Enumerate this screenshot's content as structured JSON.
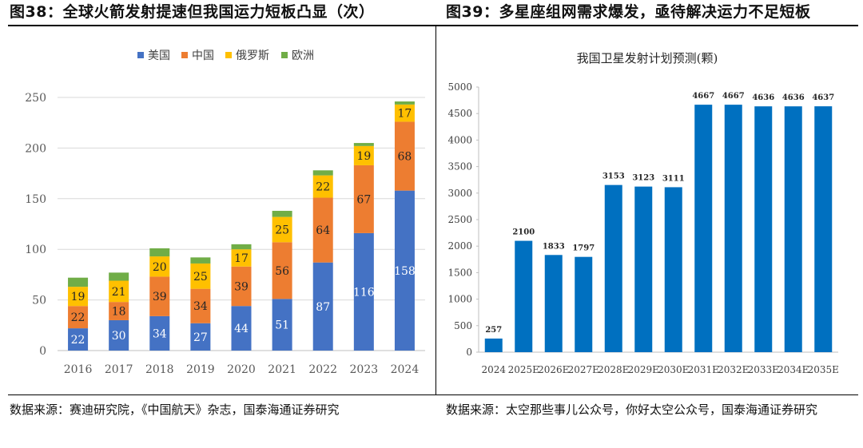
{
  "left": {
    "header": "图38：全球火箭发射提速但我国运力短板凸显（次）",
    "source": "数据来源：赛迪研究院，《中国航天》杂志，国泰海通证券研究"
  },
  "right": {
    "header": "图39：多星座组网需求爆发，亟待解决运力不足短板",
    "source": "数据来源：太空那些事儿公众号，你好太空公众号，国泰海通证券研究"
  },
  "colors": {
    "usa": "#4472c4",
    "china": "#ed7d31",
    "russia": "#ffc000",
    "europe": "#70ad47",
    "bar_blue": "#0070c0"
  },
  "chart_data": [
    {
      "type": "bar",
      "stacked": true,
      "title": "",
      "categories": [
        "2016",
        "2017",
        "2018",
        "2019",
        "2020",
        "2021",
        "2022",
        "2023",
        "2024"
      ],
      "series": [
        {
          "name": "美国",
          "values": [
            22,
            30,
            34,
            27,
            44,
            51,
            87,
            116,
            158
          ]
        },
        {
          "name": "中国",
          "values": [
            22,
            18,
            39,
            34,
            39,
            56,
            64,
            67,
            68
          ]
        },
        {
          "name": "俄罗斯",
          "values": [
            19,
            21,
            20,
            25,
            17,
            25,
            22,
            19,
            17
          ]
        },
        {
          "name": "欧洲",
          "values": [
            9,
            8,
            8,
            6,
            5,
            6,
            5,
            3,
            3
          ]
        }
      ],
      "ylim": [
        0,
        250
      ],
      "yticks": [
        0,
        50,
        100,
        150,
        200,
        250
      ],
      "legend": "top",
      "grid": true,
      "xlabel": "",
      "ylabel": ""
    },
    {
      "type": "bar",
      "title": "我国卫星发射计划预测(颗)",
      "categories": [
        "2024",
        "2025E",
        "2026E",
        "2027E",
        "2028E",
        "2029E",
        "2030E",
        "2031E",
        "2032E",
        "2033E",
        "2034E",
        "2035E"
      ],
      "values": [
        257,
        2100,
        1833,
        1797,
        3153,
        3123,
        3111,
        4667,
        4667,
        4636,
        4636,
        4637
      ],
      "ylim": [
        0,
        5000
      ],
      "yticks": [
        0,
        500,
        1000,
        1500,
        2000,
        2500,
        3000,
        3500,
        4000,
        4500,
        5000
      ],
      "grid": false,
      "xlabel": "",
      "ylabel": ""
    }
  ]
}
